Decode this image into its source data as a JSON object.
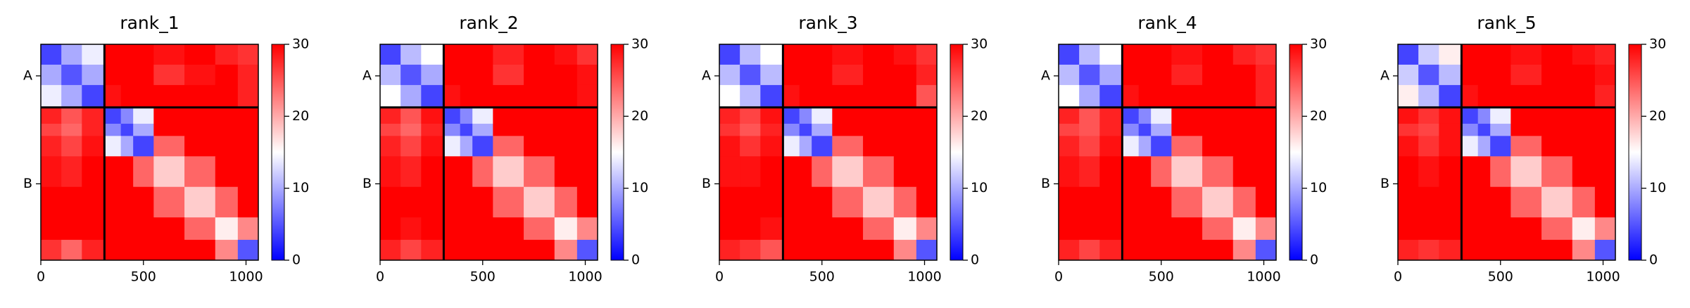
{
  "chart_data": [
    {
      "type": "heatmap",
      "title": "rank_1",
      "x_bins": [
        0,
        100,
        200,
        310,
        390,
        450,
        550,
        700,
        850,
        960,
        1060
      ],
      "y_bins": [
        0,
        100,
        200,
        310,
        390,
        450,
        550,
        700,
        850,
        960,
        1060
      ],
      "values": [
        [
          4,
          10,
          14,
          30,
          30,
          30,
          29,
          30,
          28,
          27
        ],
        [
          10,
          5,
          10,
          30,
          30,
          30,
          27,
          29,
          30,
          28
        ],
        [
          14,
          10,
          4,
          29,
          30,
          30,
          30,
          30,
          30,
          28
        ],
        [
          28,
          25,
          28,
          4,
          8,
          14,
          30,
          30,
          30,
          30
        ],
        [
          26,
          24,
          28,
          8,
          4,
          10,
          30,
          30,
          30,
          30
        ],
        [
          28,
          26,
          29,
          14,
          10,
          4,
          24,
          30,
          30,
          30
        ],
        [
          29,
          28,
          30,
          30,
          30,
          24,
          18,
          24,
          30,
          30
        ],
        [
          30,
          30,
          30,
          30,
          30,
          30,
          24,
          18,
          24,
          30
        ],
        [
          30,
          30,
          30,
          30,
          30,
          30,
          30,
          24,
          16,
          22
        ],
        [
          27,
          24,
          28,
          30,
          30,
          30,
          30,
          30,
          22,
          5
        ]
      ],
      "xlim": [
        0,
        1060
      ],
      "ylim": [
        1060,
        0
      ],
      "xticks": [
        0,
        500,
        1000
      ],
      "yticks": [
        {
          "value": 155,
          "label": "A"
        },
        {
          "value": 685,
          "label": "B"
        }
      ],
      "chain_breaks": [
        310
      ],
      "colormap": [
        "#0000ff",
        "#ffffff",
        "#ff0000"
      ],
      "colorbar": {
        "lim": [
          0,
          30
        ],
        "ticks": [
          0,
          10,
          20,
          30
        ]
      }
    },
    {
      "type": "heatmap",
      "title": "rank_2",
      "x_bins": [
        0,
        100,
        200,
        310,
        390,
        450,
        550,
        700,
        850,
        960,
        1060
      ],
      "y_bins": [
        0,
        100,
        200,
        310,
        390,
        450,
        550,
        700,
        850,
        960,
        1060
      ],
      "values": [
        [
          4,
          11,
          15,
          30,
          30,
          30,
          28,
          30,
          29,
          27
        ],
        [
          11,
          5,
          10,
          30,
          30,
          30,
          27,
          30,
          30,
          29
        ],
        [
          15,
          10,
          4,
          29,
          30,
          30,
          30,
          30,
          30,
          29
        ],
        [
          28,
          25,
          29,
          4,
          8,
          14,
          30,
          30,
          30,
          30
        ],
        [
          26,
          24,
          28,
          8,
          4,
          10,
          30,
          30,
          30,
          30
        ],
        [
          28,
          26,
          29,
          14,
          10,
          4,
          24,
          30,
          30,
          30
        ],
        [
          29,
          28,
          30,
          30,
          30,
          24,
          18,
          24,
          30,
          30
        ],
        [
          30,
          30,
          30,
          30,
          30,
          30,
          24,
          18,
          24,
          30
        ],
        [
          30,
          29,
          30,
          30,
          30,
          30,
          30,
          24,
          16,
          22
        ],
        [
          28,
          26,
          28,
          30,
          30,
          30,
          30,
          30,
          22,
          5
        ]
      ],
      "xlim": [
        0,
        1060
      ],
      "ylim": [
        1060,
        0
      ],
      "xticks": [
        0,
        500,
        1000
      ],
      "yticks": [
        {
          "value": 155,
          "label": "A"
        },
        {
          "value": 685,
          "label": "B"
        }
      ],
      "chain_breaks": [
        310
      ],
      "colormap": [
        "#0000ff",
        "#ffffff",
        "#ff0000"
      ],
      "colorbar": {
        "lim": [
          0,
          30
        ],
        "ticks": [
          0,
          10,
          20,
          30
        ]
      }
    },
    {
      "type": "heatmap",
      "title": "rank_3",
      "x_bins": [
        0,
        100,
        200,
        310,
        390,
        450,
        550,
        700,
        850,
        960,
        1060
      ],
      "y_bins": [
        0,
        100,
        200,
        310,
        390,
        450,
        550,
        700,
        850,
        960,
        1060
      ],
      "values": [
        [
          4,
          11,
          15,
          30,
          30,
          30,
          29,
          30,
          29,
          27
        ],
        [
          11,
          5,
          11,
          30,
          30,
          30,
          28,
          30,
          30,
          28
        ],
        [
          15,
          11,
          4,
          29,
          30,
          30,
          30,
          30,
          30,
          25
        ],
        [
          28,
          26,
          29,
          4,
          8,
          14,
          30,
          30,
          30,
          30
        ],
        [
          27,
          25,
          28,
          8,
          4,
          10,
          30,
          30,
          30,
          30
        ],
        [
          29,
          27,
          29,
          14,
          10,
          4,
          24,
          30,
          30,
          30
        ],
        [
          29,
          29,
          30,
          30,
          30,
          24,
          18,
          24,
          30,
          30
        ],
        [
          30,
          30,
          30,
          30,
          30,
          30,
          24,
          18,
          24,
          30
        ],
        [
          30,
          30,
          29,
          30,
          30,
          30,
          30,
          24,
          16,
          22
        ],
        [
          28,
          27,
          25,
          30,
          30,
          30,
          30,
          30,
          22,
          5
        ]
      ],
      "xlim": [
        0,
        1060
      ],
      "ylim": [
        1060,
        0
      ],
      "xticks": [
        0,
        500,
        1000
      ],
      "yticks": [
        {
          "value": 155,
          "label": "A"
        },
        {
          "value": 685,
          "label": "B"
        }
      ],
      "chain_breaks": [
        310
      ],
      "colormap": [
        "#0000ff",
        "#ffffff",
        "#ff0000"
      ],
      "colorbar": {
        "lim": [
          0,
          30
        ],
        "ticks": [
          0,
          10,
          20,
          30
        ]
      }
    },
    {
      "type": "heatmap",
      "title": "rank_4",
      "x_bins": [
        0,
        100,
        200,
        310,
        390,
        450,
        550,
        700,
        850,
        960,
        1060
      ],
      "y_bins": [
        0,
        100,
        200,
        310,
        390,
        450,
        550,
        700,
        850,
        960,
        1060
      ],
      "values": [
        [
          4,
          11,
          15,
          30,
          30,
          30,
          29,
          30,
          28,
          27
        ],
        [
          11,
          5,
          10,
          30,
          30,
          30,
          28,
          30,
          30,
          28
        ],
        [
          15,
          10,
          4,
          29,
          30,
          30,
          30,
          30,
          30,
          28
        ],
        [
          28,
          25,
          28,
          4,
          8,
          14,
          30,
          30,
          30,
          30
        ],
        [
          26,
          25,
          28,
          8,
          4,
          10,
          30,
          30,
          30,
          30
        ],
        [
          28,
          26,
          29,
          14,
          10,
          4,
          24,
          30,
          30,
          30
        ],
        [
          29,
          28,
          30,
          30,
          30,
          24,
          18,
          24,
          30,
          30
        ],
        [
          30,
          30,
          30,
          30,
          30,
          30,
          24,
          18,
          24,
          30
        ],
        [
          30,
          30,
          30,
          30,
          30,
          30,
          30,
          24,
          16,
          22
        ],
        [
          28,
          26,
          28,
          30,
          30,
          30,
          30,
          30,
          22,
          5
        ]
      ],
      "xlim": [
        0,
        1060
      ],
      "ylim": [
        1060,
        0
      ],
      "xticks": [
        0,
        500,
        1000
      ],
      "yticks": [
        {
          "value": 155,
          "label": "A"
        },
        {
          "value": 685,
          "label": "B"
        }
      ],
      "chain_breaks": [
        310
      ],
      "colormap": [
        "#0000ff",
        "#ffffff",
        "#ff0000"
      ],
      "colorbar": {
        "lim": [
          0,
          30
        ],
        "ticks": [
          0,
          10,
          20,
          30
        ]
      }
    },
    {
      "type": "heatmap",
      "title": "rank_5",
      "x_bins": [
        0,
        100,
        200,
        310,
        390,
        450,
        550,
        700,
        850,
        960,
        1060
      ],
      "y_bins": [
        0,
        100,
        200,
        310,
        390,
        450,
        550,
        700,
        850,
        960,
        1060
      ],
      "values": [
        [
          4,
          12,
          16,
          30,
          30,
          30,
          29,
          30,
          29,
          28
        ],
        [
          12,
          5,
          11,
          30,
          30,
          30,
          28,
          30,
          30,
          29
        ],
        [
          16,
          11,
          4,
          29,
          30,
          30,
          30,
          30,
          30,
          28
        ],
        [
          29,
          27,
          29,
          4,
          8,
          14,
          30,
          30,
          30,
          30
        ],
        [
          27,
          26,
          29,
          8,
          4,
          10,
          30,
          30,
          30,
          30
        ],
        [
          29,
          27,
          29,
          14,
          10,
          4,
          24,
          30,
          30,
          30
        ],
        [
          30,
          29,
          30,
          30,
          30,
          24,
          18,
          24,
          30,
          30
        ],
        [
          30,
          30,
          30,
          30,
          30,
          30,
          24,
          18,
          24,
          30
        ],
        [
          30,
          30,
          30,
          30,
          30,
          30,
          30,
          24,
          16,
          22
        ],
        [
          28,
          27,
          28,
          30,
          30,
          30,
          30,
          30,
          22,
          5
        ]
      ],
      "xlim": [
        0,
        1060
      ],
      "ylim": [
        1060,
        0
      ],
      "xticks": [
        0,
        500,
        1000
      ],
      "yticks": [
        {
          "value": 155,
          "label": "A"
        },
        {
          "value": 685,
          "label": "B"
        }
      ],
      "chain_breaks": [
        310
      ],
      "colormap": [
        "#0000ff",
        "#ffffff",
        "#ff0000"
      ],
      "colorbar": {
        "lim": [
          0,
          30
        ],
        "ticks": [
          0,
          10,
          20,
          30
        ]
      }
    }
  ]
}
